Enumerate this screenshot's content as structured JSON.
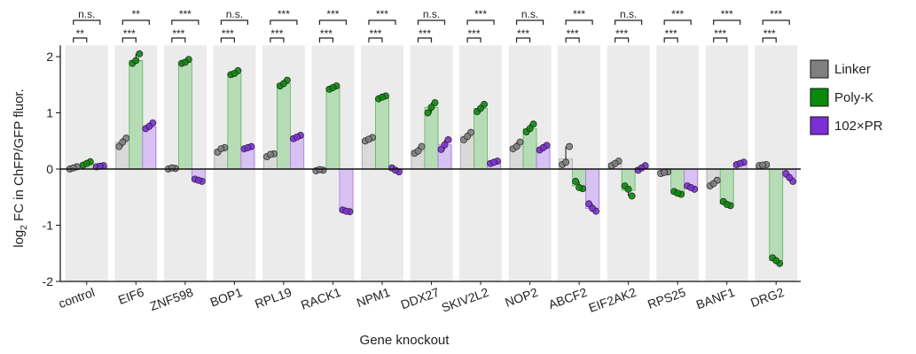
{
  "chart_data": {
    "type": "bar",
    "xlabel": "Gene knockout",
    "ylabel_main": "log",
    "ylabel_sub": "2",
    "ylabel_rest": " FC in ChFP/GFP fluor.",
    "ylim": [
      -2,
      2.2
    ],
    "yticks": [
      -2,
      -1,
      0,
      1,
      2
    ],
    "grid": false,
    "legend_position": "right",
    "categories": [
      "control",
      "EIF6",
      "ZNF598",
      "BOP1",
      "RPL19",
      "RACK1",
      "NPM1",
      "DDX27",
      "SKIV2L2",
      "NOP2",
      "ABCF2",
      "EIF2AK2",
      "RPS25",
      "BANF1",
      "DRG2"
    ],
    "series": [
      {
        "name": "Linker",
        "color": "#808080",
        "values": [
          0.03,
          0.48,
          0.01,
          0.35,
          0.25,
          -0.02,
          0.53,
          0.33,
          0.58,
          0.4,
          0.18,
          0.1,
          -0.06,
          -0.25,
          0.07
        ],
        "points": [
          [
            0.0,
            0.04,
            0.02
          ],
          [
            0.4,
            0.55,
            0.48
          ],
          [
            0.0,
            0.01,
            0.02
          ],
          [
            0.3,
            0.38,
            0.36
          ],
          [
            0.22,
            0.27,
            0.26
          ],
          [
            -0.03,
            -0.02,
            -0.01
          ],
          [
            0.5,
            0.56,
            0.53
          ],
          [
            0.28,
            0.4,
            0.32
          ],
          [
            0.52,
            0.65,
            0.58
          ],
          [
            0.36,
            0.48,
            0.4
          ],
          [
            0.08,
            0.4,
            0.12
          ],
          [
            0.06,
            0.14,
            0.1
          ],
          [
            -0.08,
            -0.05,
            -0.06
          ],
          [
            -0.3,
            -0.2,
            -0.26
          ],
          [
            0.06,
            0.08,
            0.07
          ]
        ]
      },
      {
        "name": "Poly-K",
        "color": "#0a8a0a",
        "values": [
          0.1,
          1.93,
          1.9,
          1.7,
          1.52,
          1.45,
          1.27,
          1.1,
          1.08,
          0.72,
          -0.3,
          -0.38,
          -0.43,
          -0.62,
          -1.63
        ],
        "points": [
          [
            0.07,
            0.13,
            0.1
          ],
          [
            1.88,
            2.05,
            1.93
          ],
          [
            1.88,
            1.95,
            1.9
          ],
          [
            1.68,
            1.75,
            1.7
          ],
          [
            1.48,
            1.58,
            1.52
          ],
          [
            1.42,
            1.48,
            1.45
          ],
          [
            1.25,
            1.3,
            1.28
          ],
          [
            1.0,
            1.18,
            1.1
          ],
          [
            1.02,
            1.15,
            1.08
          ],
          [
            0.66,
            0.8,
            0.72
          ],
          [
            -0.22,
            -0.35,
            -0.33
          ],
          [
            -0.3,
            -0.48,
            -0.36
          ],
          [
            -0.4,
            -0.45,
            -0.43
          ],
          [
            -0.58,
            -0.65,
            -0.63
          ],
          [
            -1.58,
            -1.68,
            -1.63
          ]
        ]
      },
      {
        "name": "102×PR",
        "color": "#7d2fd6",
        "values": [
          0.05,
          0.75,
          -0.2,
          0.38,
          0.57,
          -0.75,
          -0.02,
          0.43,
          0.12,
          0.38,
          -0.7,
          0.02,
          -0.33,
          0.1,
          -0.15
        ],
        "points": [
          [
            0.04,
            0.06,
            0.05
          ],
          [
            0.72,
            0.82,
            0.76
          ],
          [
            -0.18,
            -0.22,
            -0.2
          ],
          [
            0.36,
            0.4,
            0.38
          ],
          [
            0.54,
            0.6,
            0.57
          ],
          [
            -0.73,
            -0.76,
            -0.75
          ],
          [
            0.02,
            -0.05,
            -0.02
          ],
          [
            0.35,
            0.52,
            0.43
          ],
          [
            0.1,
            0.14,
            0.12
          ],
          [
            0.34,
            0.42,
            0.38
          ],
          [
            -0.62,
            -0.75,
            -0.7
          ],
          [
            -0.02,
            0.06,
            0.02
          ],
          [
            -0.3,
            -0.36,
            -0.33
          ],
          [
            0.08,
            0.12,
            0.1
          ],
          [
            -0.08,
            -0.22,
            -0.15
          ]
        ]
      }
    ],
    "significance_top": [
      "n.s.",
      "**",
      "***",
      "n.s.",
      "***",
      "***",
      "***",
      "n.s.",
      "***",
      "n.s.",
      "***",
      "n.s.",
      "***",
      "***",
      "***"
    ],
    "significance_bottom": [
      "**",
      "***",
      "***",
      "***",
      "***",
      "***",
      "***",
      "***",
      "***",
      "***",
      "***",
      "***",
      "***",
      "***",
      "***"
    ]
  }
}
